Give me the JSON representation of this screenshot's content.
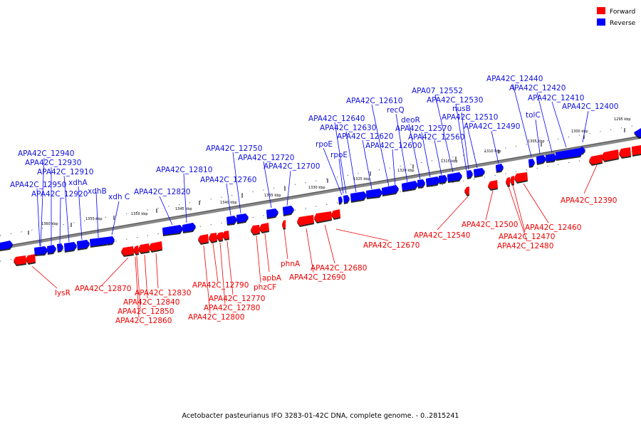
{
  "legend": [
    {
      "label": "Forward",
      "color": "#ff0000"
    },
    {
      "label": "Reverse",
      "color": "#0000ff"
    }
  ],
  "caption": "Acetobacter pasteurianus IFO 3283-01-42C DNA, complete genome. - 0..2815241",
  "colors": {
    "forward": "#ff0000",
    "reverse": "#0000ff",
    "forward_label": "#ee0000",
    "reverse_label": "#1111dd"
  },
  "ticks": [
    "1295 kbp",
    "1300 kbp",
    "1305 kbp",
    "1310 kbp",
    "1315 kbp",
    "1320 kbp",
    "1325 kbp",
    "1330 kbp",
    "1335 kbp",
    "1340 kbp",
    "1345 kbp",
    "1350 kbp",
    "1355 kbp",
    "1360 kbp"
  ],
  "reverse_genes": [
    "APA42C_12400",
    "APA42C_12410",
    "APA42C_12420",
    "APA42C_12440",
    "tolC",
    "APA42C_12490",
    "APA42C_12510",
    "nusB",
    "APA42C_12530",
    "APA07_12552",
    "APA42C_12560",
    "APA42C_12570",
    "deoR",
    "recQ",
    "APA42C_12600",
    "APA42C_12610",
    "APA42C_12620",
    "APA42C_12630",
    "APA42C_12640",
    "rpoE",
    "rpoE",
    "APA42C_12700",
    "APA42C_12720",
    "APA42C_12750",
    "APA42C_12760",
    "APA42C_12810",
    "APA42C_12820",
    "xdh C",
    "xdhB",
    "xdhA",
    "APA42C_12910",
    "APA42C_12920",
    "APA42C_12930",
    "APA42C_12940",
    "APA42C_12950"
  ],
  "forward_genes": [
    "APA42C_12390",
    "APA42C_12460",
    "APA42C_12470",
    "APA42C_12480",
    "APA42C_12500",
    "APA42C_12540",
    "APA42C_12670",
    "APA42C_12680",
    "APA42C_12690",
    "phnA",
    "apbA",
    "phzCF",
    "APA42C_12770",
    "APA42C_12780",
    "APA42C_12790",
    "APA42C_12800",
    "APA42C_12830",
    "APA42C_12840",
    "APA42C_12850",
    "APA42C_12860",
    "APA42C_12870",
    "lysR"
  ]
}
